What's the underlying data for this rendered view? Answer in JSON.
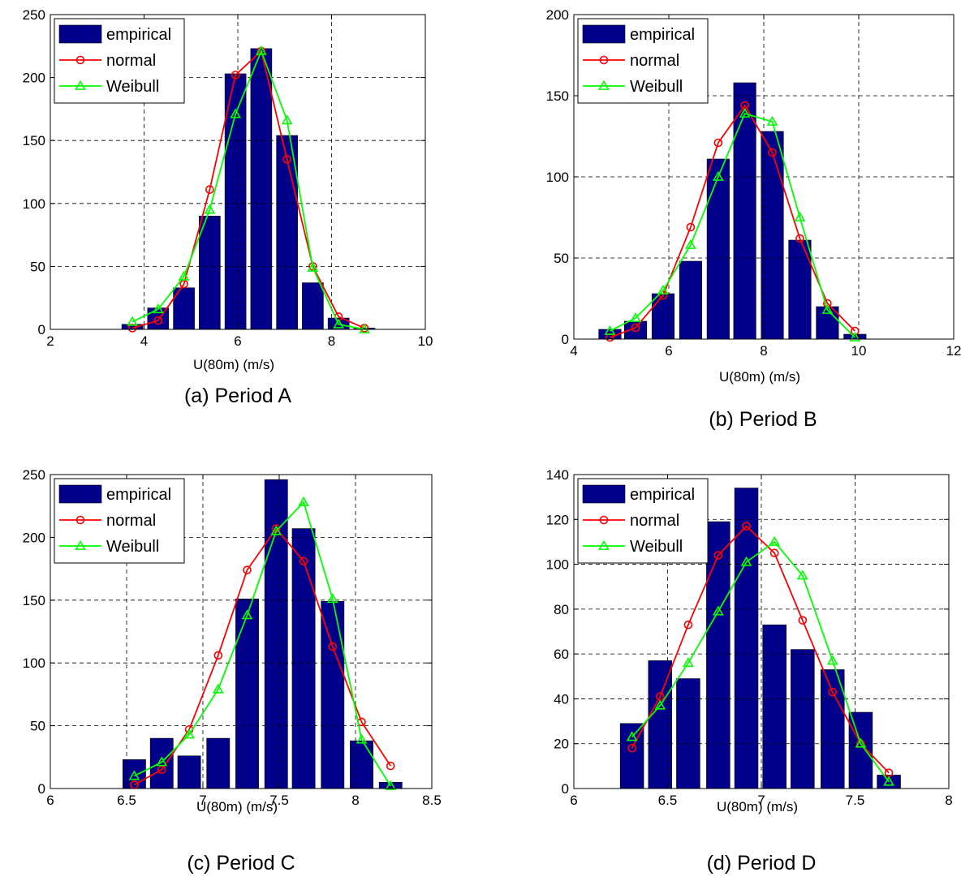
{
  "chart_data": [
    {
      "type": "bar",
      "caption": "(a) Period A",
      "xlabel": "U(80m) (m/s)",
      "ylabel": "",
      "xlim": [
        2,
        10
      ],
      "ylim": [
        0,
        250
      ],
      "xticks": [
        2,
        4,
        6,
        8,
        10
      ],
      "yticks": [
        0,
        50,
        100,
        150,
        200,
        250
      ],
      "xtick_labels": [
        "2",
        "4",
        "6",
        "8",
        "10"
      ],
      "ytick_labels": [
        "0",
        "50",
        "100",
        "150",
        "200",
        "250"
      ],
      "grid": true,
      "legend_position": "top-left",
      "bar_width": 0.45,
      "series": [
        {
          "name": "empirical",
          "kind": "bar",
          "color": "#00008b",
          "x": [
            3.75,
            4.3,
            4.85,
            5.4,
            5.95,
            6.5,
            7.05,
            7.6,
            8.15,
            8.7
          ],
          "values": [
            4,
            17,
            33,
            90,
            203,
            223,
            154,
            37,
            9,
            1
          ]
        },
        {
          "name": "normal",
          "kind": "line",
          "marker": "circle",
          "color": "#ff0000",
          "x": [
            3.75,
            4.3,
            4.85,
            5.4,
            5.95,
            6.5,
            7.05,
            7.6,
            8.15,
            8.7
          ],
          "values": [
            1,
            7,
            36,
            111,
            202,
            221,
            135,
            50,
            10,
            1
          ]
        },
        {
          "name": "Weibull",
          "kind": "line",
          "marker": "triangle",
          "color": "#00ff00",
          "x": [
            3.75,
            4.3,
            4.85,
            5.4,
            5.95,
            6.5,
            7.05,
            7.6,
            8.15,
            8.7
          ],
          "values": [
            6,
            16,
            42,
            95,
            171,
            221,
            166,
            49,
            4,
            0
          ]
        }
      ]
    },
    {
      "type": "bar",
      "caption": "(b) Period B",
      "xlabel": "U(80m) (m/s)",
      "ylabel": "",
      "xlim": [
        4,
        12
      ],
      "ylim": [
        0,
        200
      ],
      "xticks": [
        4,
        6,
        8,
        10,
        12
      ],
      "yticks": [
        0,
        50,
        100,
        150,
        200
      ],
      "xtick_labels": [
        "4",
        "6",
        "8",
        "10",
        "12"
      ],
      "ytick_labels": [
        "0",
        "50",
        "100",
        "150",
        "200"
      ],
      "grid": true,
      "legend_position": "top-left",
      "bar_width": 0.47,
      "series": [
        {
          "name": "empirical",
          "kind": "bar",
          "color": "#00008b",
          "x": [
            4.76,
            5.3,
            5.88,
            6.46,
            7.04,
            7.6,
            8.18,
            8.76,
            9.34,
            9.92
          ],
          "values": [
            6,
            11,
            28,
            48,
            111,
            158,
            128,
            61,
            20,
            3
          ]
        },
        {
          "name": "normal",
          "kind": "line",
          "marker": "circle",
          "color": "#ff0000",
          "x": [
            4.76,
            5.3,
            5.88,
            6.46,
            7.04,
            7.6,
            8.18,
            8.76,
            9.34,
            9.92
          ],
          "values": [
            1,
            7,
            27,
            69,
            121,
            144,
            115,
            62,
            22,
            5
          ]
        },
        {
          "name": "Weibull",
          "kind": "line",
          "marker": "triangle",
          "color": "#00ff00",
          "x": [
            4.76,
            5.3,
            5.88,
            6.46,
            7.04,
            7.6,
            8.18,
            8.76,
            9.34,
            9.92
          ],
          "values": [
            5,
            13,
            30,
            58,
            100,
            139,
            134,
            75,
            18,
            1
          ]
        }
      ]
    },
    {
      "type": "bar",
      "caption": "(c) Period C",
      "xlabel": "U(80m) (m/s)",
      "ylabel": "",
      "xlim": [
        6,
        8.5
      ],
      "ylim": [
        0,
        250
      ],
      "xticks": [
        6,
        6.5,
        7,
        7.5,
        8,
        8.5
      ],
      "yticks": [
        0,
        50,
        100,
        150,
        200,
        250
      ],
      "xtick_labels": [
        "6",
        "6.5",
        "7",
        "7.5",
        "8",
        "8.5"
      ],
      "ytick_labels": [
        "0",
        "50",
        "100",
        "150",
        "200",
        "250"
      ],
      "grid": true,
      "legend_position": "top-left",
      "bar_width": 0.15,
      "series": [
        {
          "name": "empirical",
          "kind": "bar",
          "color": "#00008b",
          "x": [
            6.55,
            6.73,
            6.91,
            7.1,
            7.29,
            7.48,
            7.66,
            7.85,
            8.04,
            8.23
          ],
          "values": [
            23,
            40,
            26,
            40,
            151,
            246,
            207,
            149,
            38,
            5
          ]
        },
        {
          "name": "normal",
          "kind": "line",
          "marker": "circle",
          "color": "#ff0000",
          "x": [
            6.55,
            6.73,
            6.91,
            7.1,
            7.29,
            7.48,
            7.66,
            7.85,
            8.04,
            8.23
          ],
          "values": [
            3,
            15,
            47,
            106,
            174,
            207,
            181,
            113,
            53,
            18
          ]
        },
        {
          "name": "Weibull",
          "kind": "line",
          "marker": "triangle",
          "color": "#00ff00",
          "x": [
            6.55,
            6.73,
            6.91,
            7.1,
            7.29,
            7.48,
            7.66,
            7.85,
            8.04,
            8.23
          ],
          "values": [
            10,
            21,
            43,
            79,
            138,
            205,
            228,
            151,
            39,
            2
          ]
        }
      ]
    },
    {
      "type": "bar",
      "caption": "(d) Period D",
      "xlabel": "U(80m) (m/s)",
      "ylabel": "",
      "xlim": [
        6,
        8
      ],
      "ylim": [
        0,
        140
      ],
      "xticks": [
        6,
        6.5,
        7,
        7.5,
        8
      ],
      "yticks": [
        0,
        20,
        40,
        60,
        80,
        100,
        120,
        140
      ],
      "xtick_labels": [
        "6",
        "6.5",
        "7",
        "7.5",
        "8"
      ],
      "ytick_labels": [
        "0",
        "20",
        "40",
        "60",
        "80",
        "100",
        "120",
        "140"
      ],
      "grid": true,
      "legend_position": "top-left",
      "bar_width": 0.125,
      "series": [
        {
          "name": "empirical",
          "kind": "bar",
          "color": "#00008b",
          "x": [
            6.31,
            6.46,
            6.61,
            6.77,
            6.92,
            7.07,
            7.22,
            7.38,
            7.53,
            7.68
          ],
          "values": [
            29,
            57,
            49,
            119,
            134,
            73,
            62,
            53,
            34,
            6
          ]
        },
        {
          "name": "normal",
          "kind": "line",
          "marker": "circle",
          "color": "#ff0000",
          "x": [
            6.31,
            6.46,
            6.61,
            6.77,
            6.92,
            7.07,
            7.22,
            7.38,
            7.53,
            7.68
          ],
          "values": [
            18,
            41,
            73,
            104,
            117,
            105,
            75,
            43,
            20,
            7
          ]
        },
        {
          "name": "Weibull",
          "kind": "line",
          "marker": "triangle",
          "color": "#00ff00",
          "x": [
            6.31,
            6.46,
            6.61,
            6.77,
            6.92,
            7.07,
            7.22,
            7.38,
            7.53,
            7.68
          ],
          "values": [
            23,
            37,
            56,
            79,
            101,
            110,
            95,
            57,
            20,
            3
          ]
        }
      ]
    }
  ]
}
